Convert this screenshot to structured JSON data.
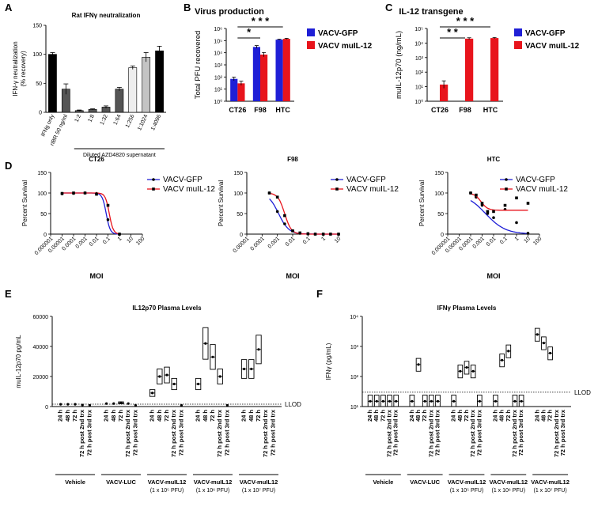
{
  "figure": {
    "panel_labels": [
      "A",
      "B",
      "C",
      "D",
      "E",
      "F"
    ]
  },
  "colors": {
    "gfp": "#1f1fd6",
    "il12": "#e8141c",
    "black": "#000000",
    "gray_dark": "#555555",
    "gray_mid": "#8c8c8c",
    "gray_light": "#c4c4c4",
    "gray_pale": "#eeeeee"
  },
  "chart_data": [
    {
      "id": "A",
      "type": "bar",
      "title": "Rat IFNγ neutralization",
      "ylabel": "IFN-γ neutralization\n(% recovery)",
      "ylabel_lines": [
        "IFN-γ neutralization",
        "(% recovery)"
      ],
      "ylim": [
        0,
        150
      ],
      "yticks": [
        0,
        50,
        100,
        150
      ],
      "categories": [
        "IFNg only",
        "rIBR 50 ng/ml",
        "1:2",
        "1:8",
        "1:32",
        "1:64",
        "1:256",
        "1:1024",
        "1:4096"
      ],
      "values": [
        100,
        40,
        3,
        5,
        9,
        40,
        77,
        95,
        106
      ],
      "errors": [
        3,
        9,
        1,
        1,
        2,
        3,
        3,
        8,
        8
      ],
      "bar_colors": [
        "#000000",
        "#555555",
        "#555555",
        "#555555",
        "#555555",
        "#555555",
        "#eeeeee",
        "#c4c4c4",
        "#000000"
      ],
      "group_label": "Diluted AZD4820 supernatant"
    },
    {
      "id": "B",
      "type": "bar",
      "title": "Virus production",
      "ylabel": "Total PFU recovered",
      "yscale": "log",
      "ylim": [
        1,
        1000000
      ],
      "ytick_labels": [
        "10⁰",
        "10¹",
        "10²",
        "10³",
        "10⁴",
        "10⁵",
        "10⁶"
      ],
      "categories": [
        "CT26",
        "F98",
        "HTC"
      ],
      "series": [
        {
          "name": "VACV-GFP",
          "values": [
            70,
            30000,
            120000
          ],
          "errors_factor": [
            1.4,
            1.3,
            1.1
          ]
        },
        {
          "name": "VACV muIL-12",
          "values": [
            30,
            7000,
            140000
          ],
          "errors_factor": [
            1.5,
            1.5,
            1.1
          ]
        }
      ],
      "significance": [
        {
          "from": "CT26",
          "to": "HTC",
          "label": "* * *"
        },
        {
          "from": "CT26",
          "to": "F98",
          "label": "*"
        }
      ]
    },
    {
      "id": "C",
      "type": "bar",
      "title": "IL-12 transgene",
      "ylabel": "muIL-12p70 (ng/mL)",
      "yscale": "log",
      "ylim": [
        1,
        100000
      ],
      "ytick_labels": [
        "10⁰",
        "10¹",
        "10²",
        "10³",
        "10⁴",
        "10⁵"
      ],
      "categories": [
        "CT26",
        "F98",
        "HTC"
      ],
      "series": [
        {
          "name": "VACV-GFP",
          "values": [
            0,
            0,
            0
          ]
        },
        {
          "name": "VACV muIL-12",
          "values": [
            14,
            20000,
            22000
          ],
          "errors_factor": [
            1.8,
            1.15,
            1.1
          ]
        }
      ],
      "significance": [
        {
          "from": "CT26",
          "to": "HTC",
          "label": "* * *"
        },
        {
          "from": "CT26",
          "to": "F98",
          "label": "* *"
        }
      ]
    },
    {
      "id": "D1",
      "type": "line",
      "title": "CT26",
      "xlabel": "MOI",
      "ylabel": "Percent Survival",
      "xscale": "log",
      "xlim": [
        1e-06,
        100
      ],
      "ylim": [
        0,
        150
      ],
      "yticks": [
        0,
        50,
        100,
        150
      ],
      "xtick_labels": [
        "0.000001",
        "0.00001",
        "0.0001",
        "0.001",
        "0.01",
        "0.1",
        "1",
        "10",
        "100"
      ],
      "series": [
        {
          "name": "VACV-GFP",
          "x": [
            1e-05,
            0.0001,
            0.001,
            0.01,
            0.1,
            1
          ],
          "y": [
            98,
            99,
            100,
            99,
            35,
            0
          ],
          "ic50": 0.07,
          "hill": 2.5
        },
        {
          "name": "VACV muIL-12",
          "x": [
            1e-05,
            0.0001,
            0.001,
            0.01,
            0.1,
            1
          ],
          "y": [
            99,
            100,
            100,
            97,
            70,
            0
          ],
          "ic50": 0.13,
          "hill": 2.5
        }
      ]
    },
    {
      "id": "D2",
      "type": "line",
      "title": "F98",
      "xlabel": "MOI",
      "ylabel": "Percent Survival",
      "xscale": "log",
      "xlim": [
        1e-05,
        10
      ],
      "ylim": [
        0,
        150
      ],
      "yticks": [
        0,
        50,
        100,
        150
      ],
      "xtick_labels": [
        "0.00001",
        "0.0001",
        "0.001",
        "0.01",
        "0.1",
        "1",
        "10"
      ],
      "series": [
        {
          "name": "VACV-GFP",
          "x": [
            0.0003,
            0.001,
            0.003,
            0.01,
            0.03,
            0.1,
            0.3,
            1,
            3,
            10
          ],
          "y": [
            100,
            55,
            25,
            8,
            2,
            1,
            0,
            0,
            0,
            0
          ],
          "ic50": 0.0012,
          "hill": 1.3
        },
        {
          "name": "VACV muIL-12",
          "x": [
            0.0003,
            0.001,
            0.003,
            0.01,
            0.03,
            0.1,
            0.3,
            1,
            3,
            10
          ],
          "y": [
            100,
            90,
            45,
            8,
            3,
            1,
            0,
            0,
            0,
            0
          ],
          "ic50": 0.003,
          "hill": 2.0
        }
      ]
    },
    {
      "id": "D3",
      "type": "line",
      "title": "HTC",
      "xlabel": "MOI",
      "ylabel": "Percent Survival",
      "xscale": "log",
      "xlim": [
        1e-06,
        100
      ],
      "ylim": [
        0,
        150
      ],
      "yticks": [
        0,
        50,
        100,
        150
      ],
      "xtick_labels": [
        "0.000001",
        "0.00001",
        "0.0001",
        "0.001",
        "0.01",
        "0.1",
        "1",
        "10",
        "100"
      ],
      "series": [
        {
          "name": "VACV-GFP",
          "x": [
            0.0001,
            0.0003,
            0.001,
            0.003,
            0.01,
            0.1,
            1,
            10
          ],
          "y": [
            100,
            90,
            70,
            50,
            40,
            60,
            28,
            2
          ],
          "ic50": 0.002,
          "hill": 0.5,
          "bottom": 0
        },
        {
          "name": "VACV muIL-12",
          "x": [
            0.0001,
            0.0003,
            0.001,
            0.003,
            0.01,
            0.1,
            1,
            10
          ],
          "y": [
            100,
            95,
            75,
            55,
            55,
            70,
            88,
            75
          ],
          "ic50": 0.0008,
          "hill": 1.5,
          "bottom": 58
        }
      ]
    },
    {
      "id": "E",
      "type": "box",
      "title": "IL12p70 Plasma Levels",
      "ylabel": "muIL-12p70 pg/mL",
      "ylim": [
        0,
        60000
      ],
      "yticks": [
        0,
        20000,
        40000,
        60000
      ],
      "lod_label": "LLOD",
      "timepoints": [
        "24 h",
        "48 h",
        "72 h",
        "72 h post 2nd trx",
        "72 h post 3rd trx"
      ],
      "groups": [
        {
          "name": "Vehicle",
          "name2": "",
          "values": [
            1500,
            1500,
            1500,
            1000,
            800
          ]
        },
        {
          "name": "VACV-LUC",
          "name2": "",
          "values": [
            2000,
            2000,
            2500,
            2000,
            800
          ]
        },
        {
          "name": "VACV-muIL12",
          "name2": "(1 x 10⁵ PFU)",
          "values": [
            9000,
            20000,
            21000,
            15000,
            800
          ]
        },
        {
          "name": "VACV-muIL12",
          "name2": "(1 x 10⁶ PFU)",
          "values": [
            15000,
            42000,
            33000,
            20000,
            800
          ]
        },
        {
          "name": "VACV-muIL12",
          "name2": "(1 x 10⁷ PFU)",
          "values": [
            25000,
            25000,
            38000,
            0,
            0
          ]
        }
      ]
    },
    {
      "id": "F",
      "type": "box",
      "title": "IFNγ Plasma Levels",
      "ylabel": "IFNγ (pg/mL)",
      "yscale": "log",
      "ylim": [
        10,
        10000
      ],
      "ytick_labels": [
        "10¹",
        "10²",
        "10³",
        "10⁴"
      ],
      "lod_label": "LLOD",
      "lod_value": 30,
      "timepoints": [
        "24 h",
        "48 h",
        "72 h",
        "72 h post 2nd trx",
        "72 h post 3rd trx"
      ],
      "groups": [
        {
          "name": "Vehicle",
          "name2": "",
          "values": [
            15,
            15,
            15,
            15,
            15
          ]
        },
        {
          "name": "VACV-LUC",
          "name2": "",
          "values": [
            15,
            250,
            15,
            15,
            15
          ]
        },
        {
          "name": "VACV-muIL12",
          "name2": "(1 x 10⁵ PFU)",
          "values": [
            15,
            150,
            200,
            150,
            15
          ]
        },
        {
          "name": "VACV-muIL12",
          "name2": "(1 x 10⁶ PFU)",
          "values": [
            15,
            350,
            700,
            15,
            15
          ]
        },
        {
          "name": "VACV-muIL12",
          "name2": "(1 x 10⁷ PFU)",
          "values": [
            2500,
            1300,
            600,
            0,
            0
          ]
        }
      ]
    }
  ]
}
